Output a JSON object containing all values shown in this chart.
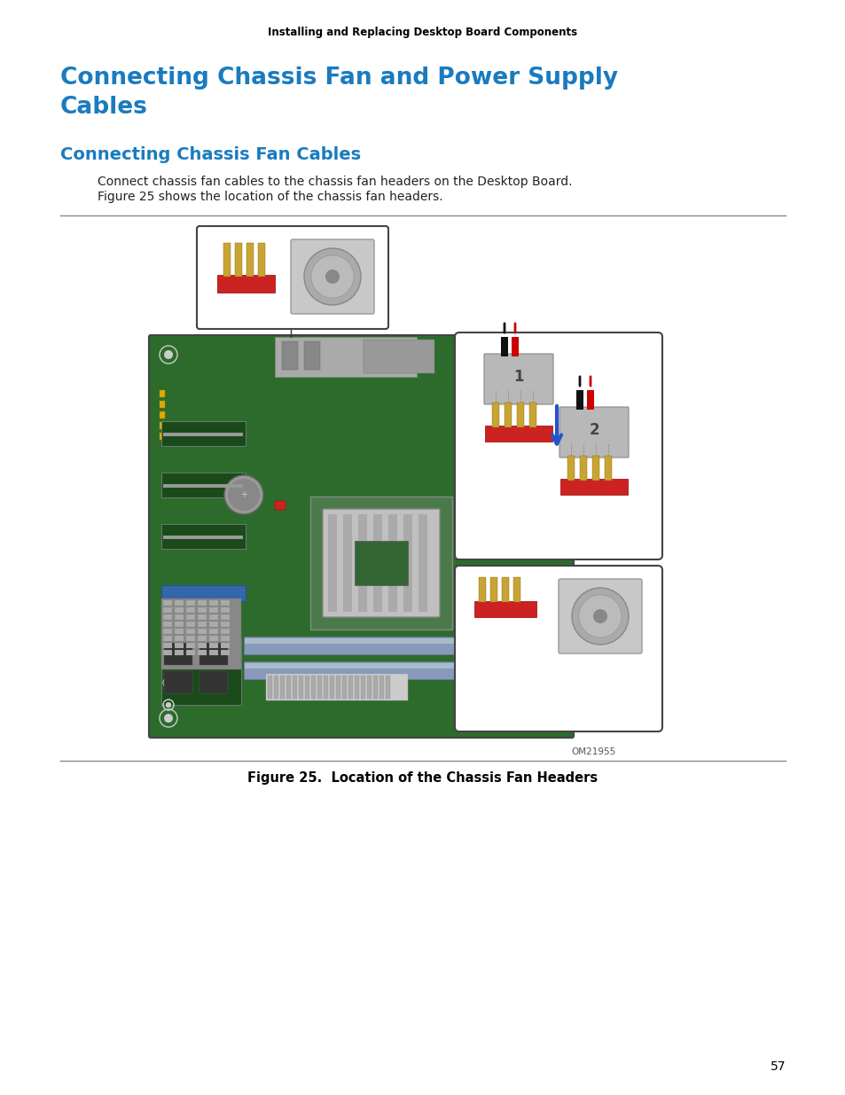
{
  "page_bg": "#ffffff",
  "header_text": "Installing and Replacing Desktop Board Components",
  "header_color": "#000000",
  "header_fontsize": 8.5,
  "title1_line1": "Connecting Chassis Fan and Power Supply",
  "title1_line2": "Cables",
  "title1_color": "#1a7bbf",
  "title1_fontsize": 19,
  "title2": "Connecting Chassis Fan Cables",
  "title2_color": "#1a7bbf",
  "title2_fontsize": 14,
  "body_line1": "Connect chassis fan cables to the chassis fan headers on the Desktop Board.",
  "body_line2": "Figure 25 shows the location of the chassis fan headers.",
  "body_color": "#222222",
  "body_fontsize": 10,
  "figure_caption": "Figure 25.  Location of the Chassis Fan Headers",
  "figure_caption_fontsize": 10.5,
  "image_label": "OM21955",
  "image_label_fontsize": 7.5,
  "page_number": "57",
  "page_number_fontsize": 10,
  "mb_green": "#2d6b2d",
  "mb_dark_green": "#1a4a1a",
  "mb_medium_green": "#3a7a3a",
  "pin_gold": "#c8a434",
  "pin_gold_edge": "#8a6a00",
  "pin_base_red": "#cc2222",
  "pin_base_edge": "#990000",
  "connector_gray": "#b8b8b8",
  "fan_gray": "#c8c8c8",
  "fan_frame_gray": "#999999",
  "cable_black": "#111111",
  "cable_red": "#cc0000",
  "blue_arrow": "#2255cc",
  "slot_blue": "#7799cc",
  "cpu_silver": "#a0a0a0",
  "cpu_green_chip": "#336633",
  "line_color": "#888888",
  "box_edge": "#555555"
}
